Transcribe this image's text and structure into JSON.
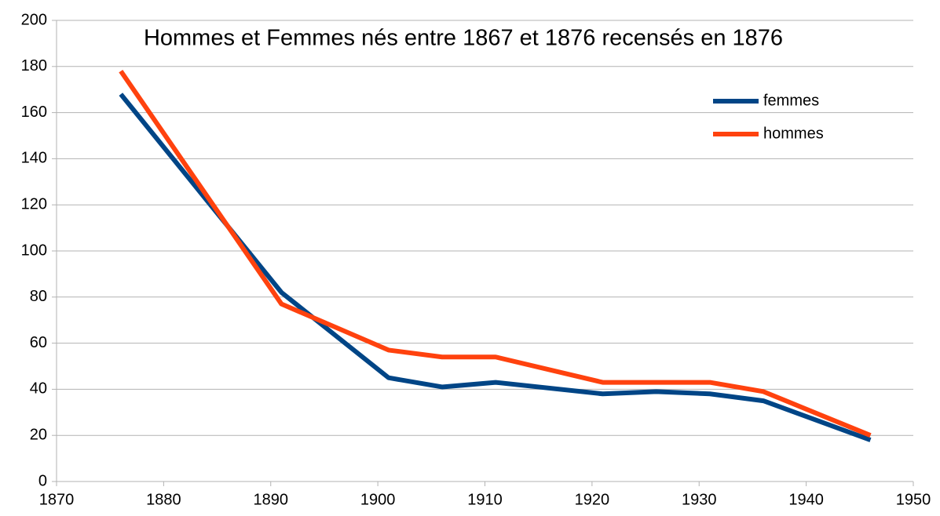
{
  "chart_data": {
    "type": "line",
    "title": "Hommes et Femmes nés entre 1867 et 1876 recensés en 1876",
    "x": [
      1876,
      1891,
      1901,
      1906,
      1911,
      1921,
      1926,
      1931,
      1936,
      1946
    ],
    "series": [
      {
        "name": "femmes",
        "color": "#004586",
        "values": [
          168,
          82,
          45,
          41,
          43,
          38,
          39,
          38,
          35,
          18
        ]
      },
      {
        "name": "hommes",
        "color": "#ff420e",
        "values": [
          178,
          77,
          57,
          54,
          54,
          43,
          43,
          43,
          39,
          20
        ]
      }
    ],
    "xlim": [
      1870,
      1950
    ],
    "xticks": [
      1870,
      1880,
      1890,
      1900,
      1910,
      1920,
      1930,
      1940,
      1950
    ],
    "ylim": [
      0,
      200
    ],
    "yticks": [
      0,
      20,
      40,
      60,
      80,
      100,
      120,
      140,
      160,
      180,
      200
    ],
    "grid": true,
    "legend": "upper right"
  }
}
